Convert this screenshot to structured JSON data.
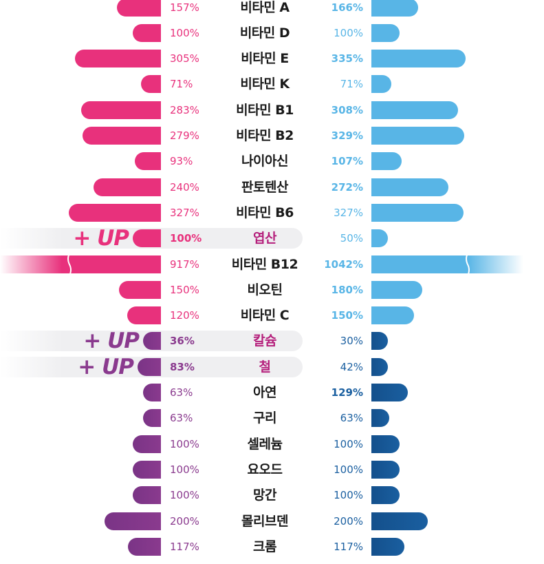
{
  "colors": {
    "left_vitamin": "#e8317c",
    "left_mineral": "#8a3a8e",
    "right_vitamin": "#58b5e6",
    "right_mineral": "#1a5fa0",
    "highlight_text": "#b5207c"
  },
  "up_badge": "+ UP",
  "chart_data": {
    "type": "bar",
    "orientation": "horizontal-butterfly",
    "unit": "%",
    "categories": [
      "비타민 A",
      "비타민 D",
      "비타민 E",
      "비타민 K",
      "비타민 B1",
      "비타민 B2",
      "나이아신",
      "판토텐산",
      "비타민 B6",
      "엽산",
      "비타민 B12",
      "비오틴",
      "비타민 C",
      "칼슘",
      "철",
      "아연",
      "구리",
      "셀레늄",
      "요오드",
      "망간",
      "몰리브덴",
      "크롬"
    ],
    "series": [
      {
        "side": "left",
        "values": [
          157,
          100,
          305,
          71,
          283,
          279,
          93,
          240,
          327,
          100,
          917,
          150,
          120,
          36,
          83,
          63,
          63,
          100,
          100,
          100,
          200,
          117
        ],
        "labels": [
          "157%",
          "100%",
          "305%",
          "71%",
          "283%",
          "279%",
          "93%",
          "240%",
          "327%",
          "100%",
          "917%",
          "150%",
          "120%",
          "36%",
          "83%",
          "63%",
          "63%",
          "100%",
          "100%",
          "100%",
          "200%",
          "117%"
        ]
      },
      {
        "side": "right",
        "values": [
          166,
          100,
          335,
          71,
          308,
          329,
          107,
          272,
          327,
          50,
          1042,
          180,
          150,
          30,
          42,
          129,
          63,
          100,
          100,
          100,
          200,
          117
        ],
        "labels": [
          "166%",
          "100%",
          "335%",
          "71%",
          "308%",
          "329%",
          "107%",
          "272%",
          "327%",
          "50%",
          "1042%",
          "180%",
          "150%",
          "30%",
          "42%",
          "129%",
          "63%",
          "100%",
          "100%",
          "100%",
          "200%",
          "117%"
        ]
      }
    ],
    "mineral_start_index": 13,
    "highlighted_categories": [
      "엽산",
      "칼슘",
      "철"
    ],
    "broken_axis_category": "비타민 B12",
    "bold_left_labels": [
      "엽산",
      "칼슘",
      "철"
    ],
    "bold_right_labels": [
      "비타민 A",
      "비타민 E",
      "비타민 B1",
      "비타민 B2",
      "나이아신",
      "판토텐산",
      "비타민 B12",
      "비오틴",
      "비타민 C",
      "아연"
    ]
  }
}
